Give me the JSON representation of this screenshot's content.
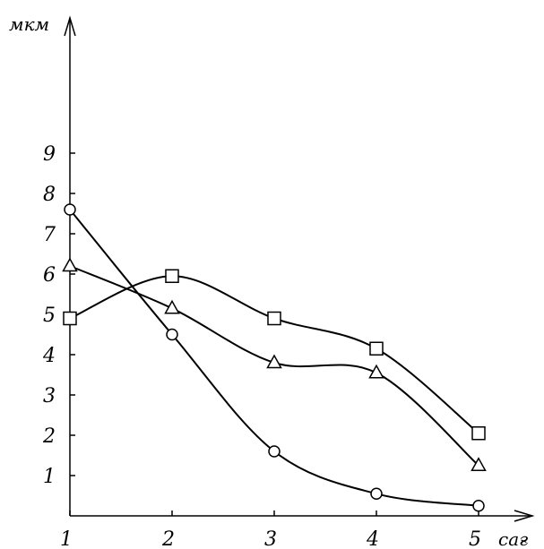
{
  "chart_data": {
    "type": "line",
    "title": "",
    "ylabel": "мкм",
    "xlabel": "сағ",
    "x": [
      1,
      2,
      3,
      4,
      5
    ],
    "x_ticks": [
      "1",
      "2",
      "3",
      "4",
      "5"
    ],
    "y_ticks": [
      "1",
      "2",
      "3",
      "4",
      "5",
      "6",
      "7",
      "8",
      "9"
    ],
    "xlim": [
      1,
      5.5
    ],
    "ylim": [
      0,
      10
    ],
    "grid": false,
    "series": [
      {
        "marker": "square",
        "values": [
          4.9,
          5.95,
          4.9,
          4.15,
          2.05
        ]
      },
      {
        "marker": "triangle",
        "values": [
          6.2,
          5.15,
          3.8,
          3.55,
          1.25
        ]
      },
      {
        "marker": "circle",
        "values": [
          7.6,
          4.5,
          1.6,
          0.55,
          0.25
        ]
      }
    ]
  }
}
